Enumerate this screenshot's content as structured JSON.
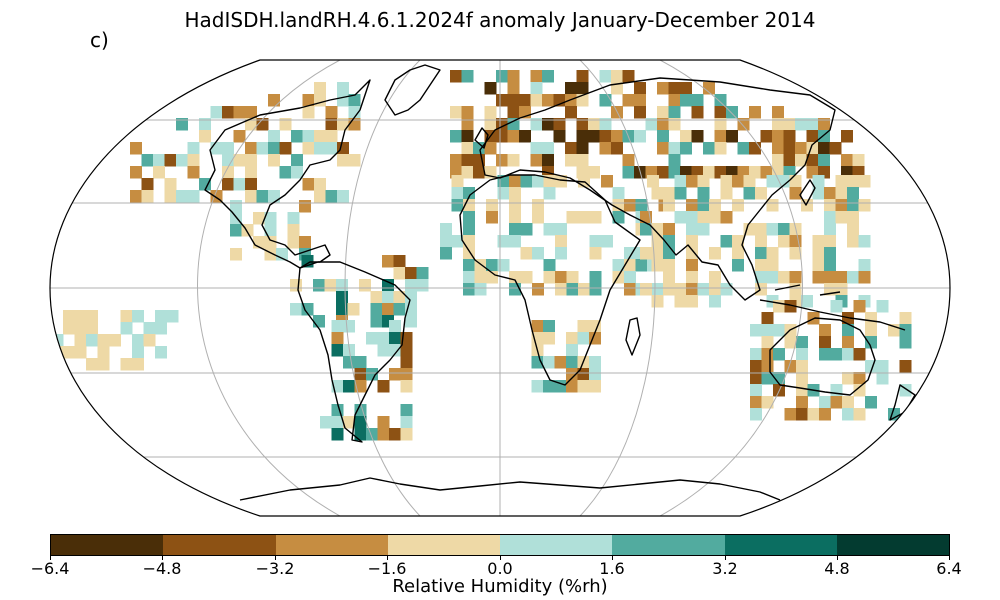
{
  "title": "HadISDH.landRH.4.6.1.2024f anomaly January-December 2014",
  "panel_label": "c)",
  "colorbar": {
    "label": "Relative Humidity (%rh)",
    "ticks": [
      "−6.4",
      "−4.8",
      "−3.2",
      "−1.6",
      "0.0",
      "1.6",
      "3.2",
      "4.8",
      "6.4"
    ],
    "tick_values": [
      -6.4,
      -4.8,
      -3.2,
      -1.6,
      0.0,
      1.6,
      3.2,
      4.8,
      6.4
    ],
    "colors": [
      "#4a2e08",
      "#8d5214",
      "#c68d41",
      "#eed9a6",
      "#b0e0d9",
      "#52ab9f",
      "#0b6e61",
      "#033b30"
    ]
  },
  "map_colors": {
    "ocean": "#ffffff",
    "coastline": "#000000",
    "graticule": "#b0b0b0",
    "border": "#000000"
  }
}
